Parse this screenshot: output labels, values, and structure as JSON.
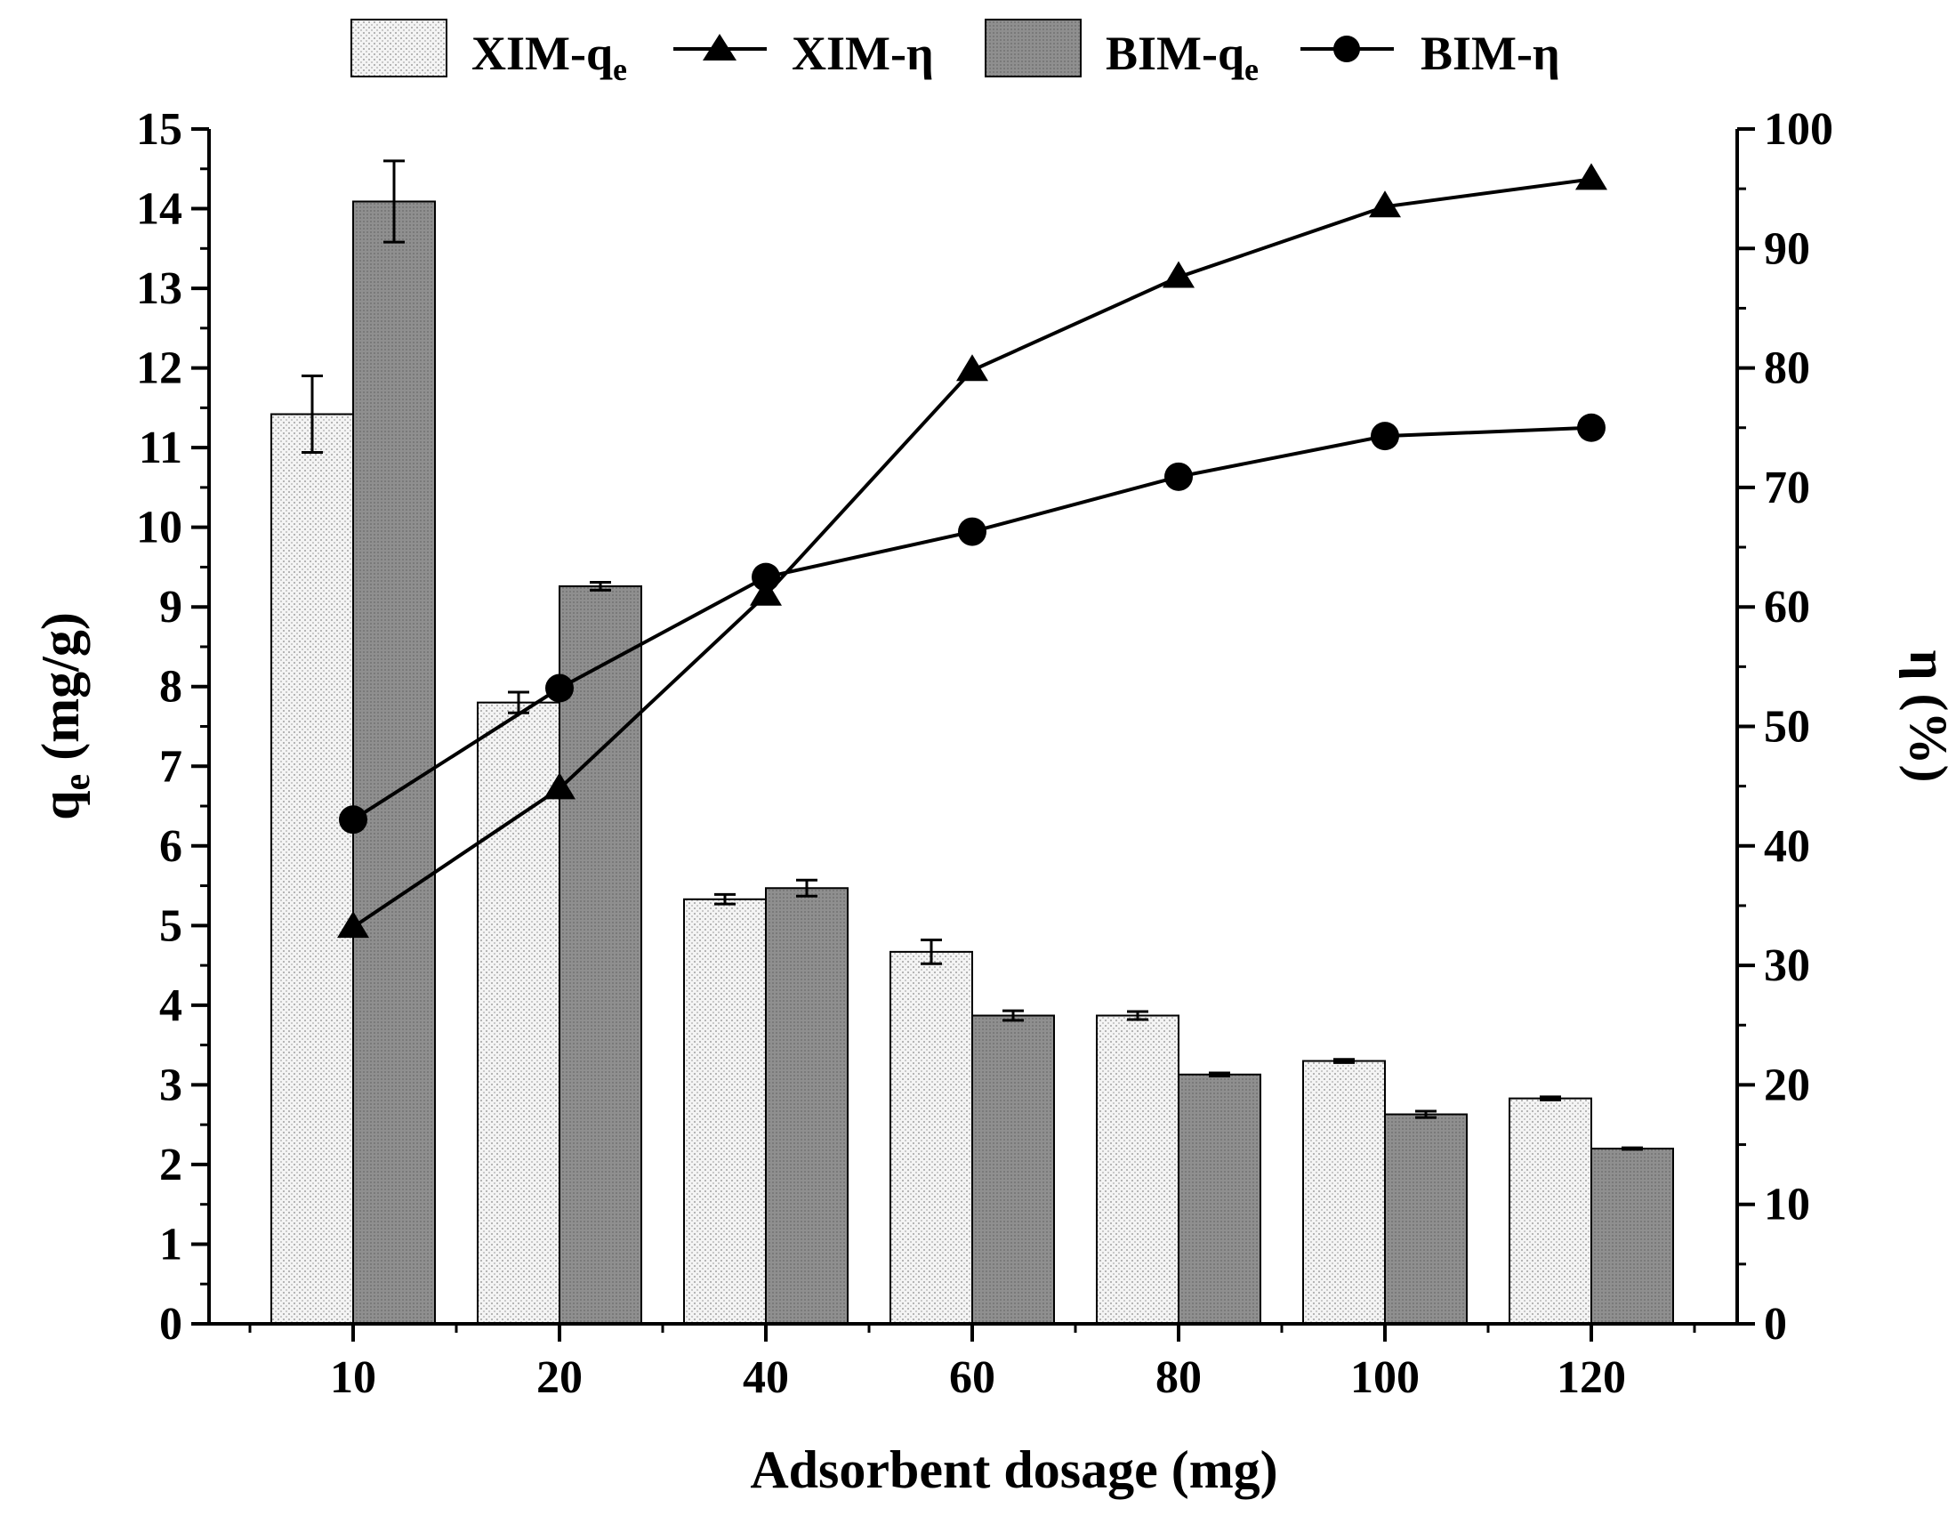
{
  "chart_data": {
    "type": "bar",
    "categories": [
      "10",
      "20",
      "40",
      "60",
      "80",
      "100",
      "120"
    ],
    "xlabel": "Adsorbent dosage (mg)",
    "ylabel": {
      "main": "q",
      "sub": "e",
      "unit": " (mg/g)"
    },
    "y2label": "η (%)",
    "ylim": [
      0,
      15
    ],
    "y2lim": [
      0,
      100
    ],
    "yticks": [
      "0",
      "1",
      "2",
      "3",
      "4",
      "5",
      "6",
      "7",
      "8",
      "9",
      "10",
      "11",
      "12",
      "13",
      "14",
      "15"
    ],
    "y2ticks": [
      "0",
      "10",
      "20",
      "30",
      "40",
      "50",
      "60",
      "70",
      "80",
      "90",
      "100"
    ],
    "bar_series": [
      {
        "name": "XIM-qe",
        "legend_main": "XIM-q",
        "legend_sub": "e",
        "values": [
          11.42,
          7.8,
          5.33,
          4.67,
          3.87,
          3.3,
          2.83
        ],
        "errors": [
          0.48,
          0.13,
          0.06,
          0.15,
          0.05,
          0.02,
          0.02
        ],
        "color": "#f2f2f2"
      },
      {
        "name": "BIM-qe",
        "legend_main": "BIM-q",
        "legend_sub": "e",
        "values": [
          14.09,
          9.26,
          5.47,
          3.87,
          3.13,
          2.63,
          2.2
        ],
        "errors": [
          0.51,
          0.05,
          0.1,
          0.06,
          0.02,
          0.04,
          0.01
        ],
        "color": "#8c8c8c"
      }
    ],
    "line_series": [
      {
        "name": "XIM-η",
        "marker": "triangle",
        "values": [
          33.2,
          44.8,
          61.0,
          79.8,
          87.6,
          93.5,
          95.8
        ]
      },
      {
        "name": "BIM-η",
        "marker": "circle",
        "values": [
          42.2,
          53.2,
          62.5,
          66.3,
          70.9,
          74.3,
          75.0
        ]
      }
    ],
    "legend_position": "top"
  }
}
